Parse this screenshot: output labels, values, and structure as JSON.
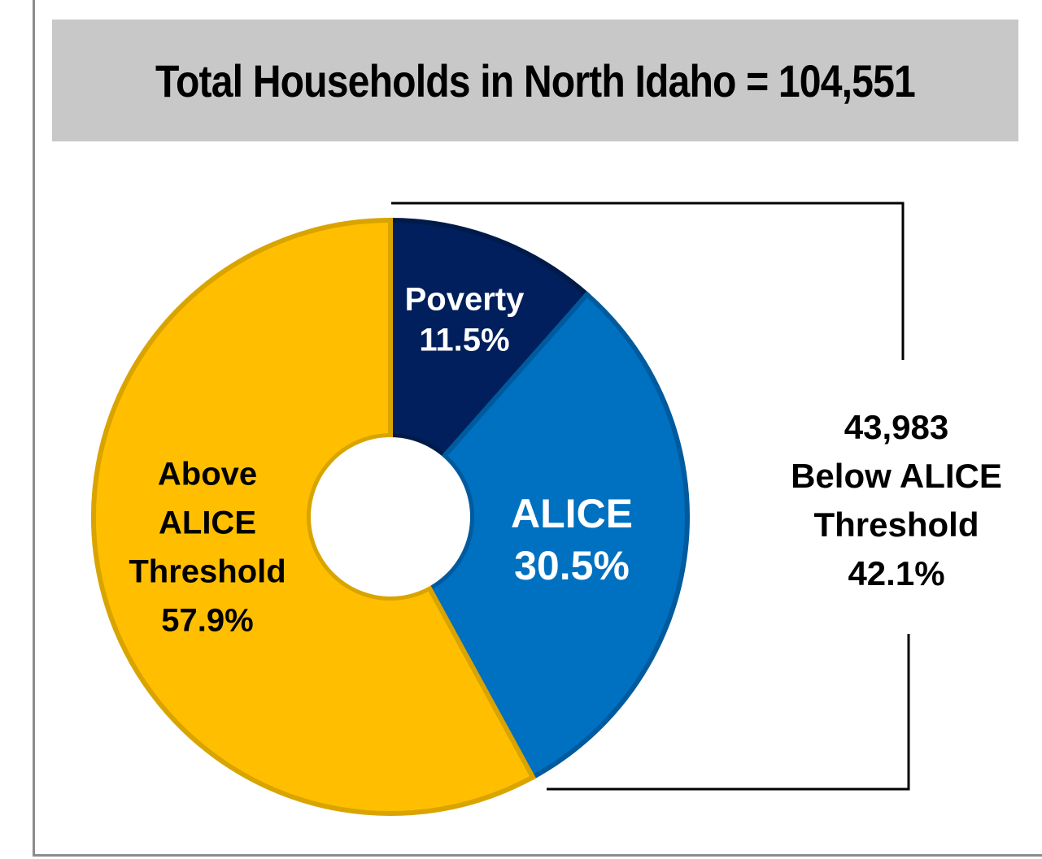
{
  "title": "Total Households in North Idaho = 104,551",
  "chart_data": {
    "type": "pie",
    "donut": true,
    "slices": [
      {
        "name": "Poverty",
        "value": 11.5,
        "label_lines": [
          "Poverty",
          "11.5%"
        ],
        "color": "#001f5c",
        "edge": "#001a4a",
        "text_color": "#ffffff"
      },
      {
        "name": "ALICE",
        "value": 30.5,
        "label_lines": [
          "ALICE",
          "30.5%"
        ],
        "color": "#0070c0",
        "edge": "#005a9e",
        "text_color": "#ffffff"
      },
      {
        "name": "Above ALICE Threshold",
        "value": 57.9,
        "label_lines": [
          "Above",
          "ALICE",
          "Threshold",
          "57.9%"
        ],
        "color": "#ffbf00",
        "edge": "#d9a400",
        "text_color": "#000000"
      }
    ],
    "bracket_annotation": {
      "lines": [
        "43,983",
        "Below ALICE",
        "Threshold",
        "42.1%"
      ],
      "spans": [
        "Poverty",
        "ALICE"
      ]
    }
  }
}
